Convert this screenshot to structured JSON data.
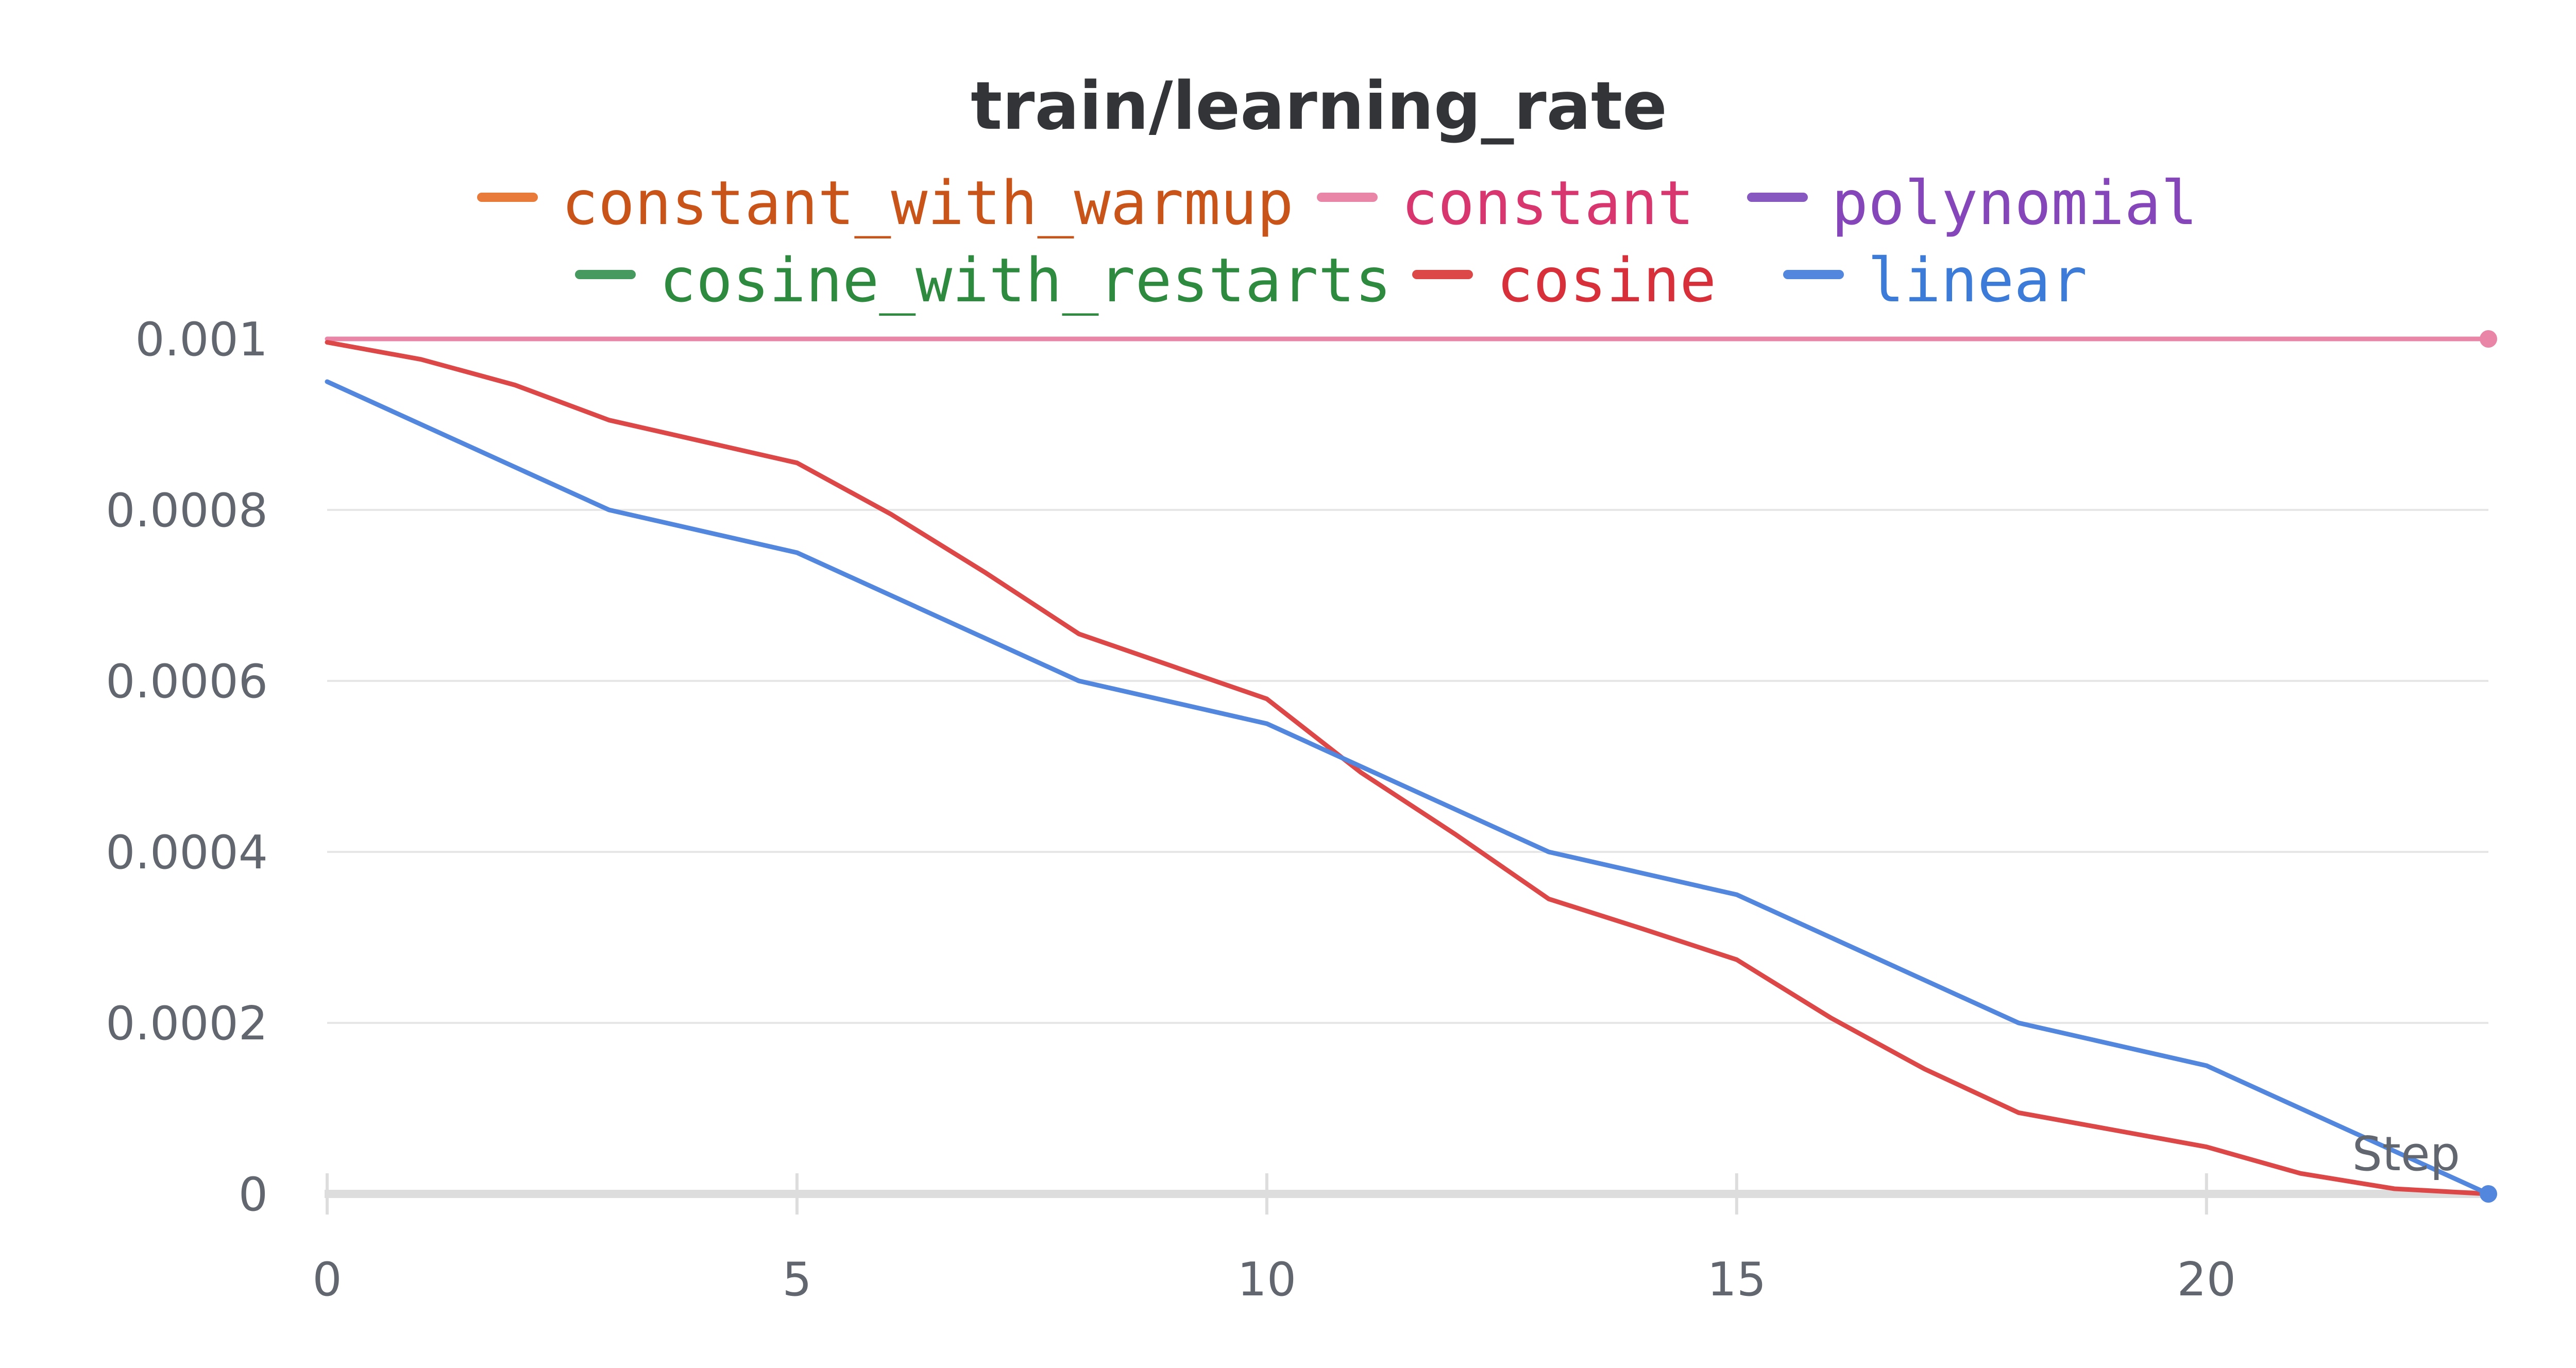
{
  "chart_data": {
    "type": "line",
    "title": "train/learning_rate",
    "xlabel": "Step",
    "ylabel": "",
    "xlim": [
      0,
      23
    ],
    "ylim": [
      0,
      0.001
    ],
    "xticks": [
      0,
      5,
      10,
      15,
      20
    ],
    "xtick_labels": [
      "0",
      "5",
      "10",
      "15",
      "20"
    ],
    "yticks": [
      0,
      0.0002,
      0.0004,
      0.0006,
      0.0008,
      0.001
    ],
    "ytick_labels": [
      "0",
      "0.0002",
      "0.0004",
      "0.0006",
      "0.0008",
      "0.001"
    ],
    "grid": true,
    "legend_position": "top",
    "legend": [
      {
        "name": "constant_with_warmup",
        "color": "#e87b3a",
        "text_color": "#c9541a"
      },
      {
        "name": "constant",
        "color": "#e986a8",
        "text_color": "#d8366f"
      },
      {
        "name": "polynomial",
        "color": "#8759c0",
        "text_color": "#8446b9"
      },
      {
        "name": "cosine_with_restarts",
        "color": "#479a5f",
        "text_color": "#2e8a3e"
      },
      {
        "name": "cosine",
        "color": "#dc4848",
        "text_color": "#d8303a"
      },
      {
        "name": "linear",
        "color": "#5387dd",
        "text_color": "#3c7bd8"
      }
    ],
    "series": [
      {
        "name": "constant",
        "color": "#e986a8",
        "x": [
          0,
          23
        ],
        "y": [
          0.001,
          0.001
        ],
        "end_marker": true
      },
      {
        "name": "cosine",
        "color": "#dc4848",
        "x": [
          0,
          1,
          2,
          3,
          4,
          5,
          6,
          7,
          8,
          9,
          10,
          11,
          12,
          13,
          14,
          15,
          16,
          17,
          18,
          19,
          20,
          21,
          22,
          23
        ],
        "y": [
          0.000996,
          0.000976,
          0.000946,
          0.000905,
          0.00088,
          0.000855,
          0.000795,
          0.000727,
          0.000655,
          0.000617,
          0.000579,
          0.000493,
          0.000421,
          0.000345,
          0.00031,
          0.000274,
          0.000206,
          0.000146,
          9.5e-05,
          7.5e-05,
          5.5e-05,
          2.4e-05,
          6e-06,
          0.0
        ],
        "end_marker": false
      },
      {
        "name": "linear",
        "color": "#5387dd",
        "x": [
          0,
          3,
          5,
          8,
          10,
          13,
          15,
          18,
          20,
          23
        ],
        "y": [
          0.00095,
          0.0008,
          0.00075,
          0.0006,
          0.00055,
          0.0004,
          0.00035,
          0.0002,
          0.00015,
          0.0
        ],
        "end_marker": true
      }
    ]
  }
}
